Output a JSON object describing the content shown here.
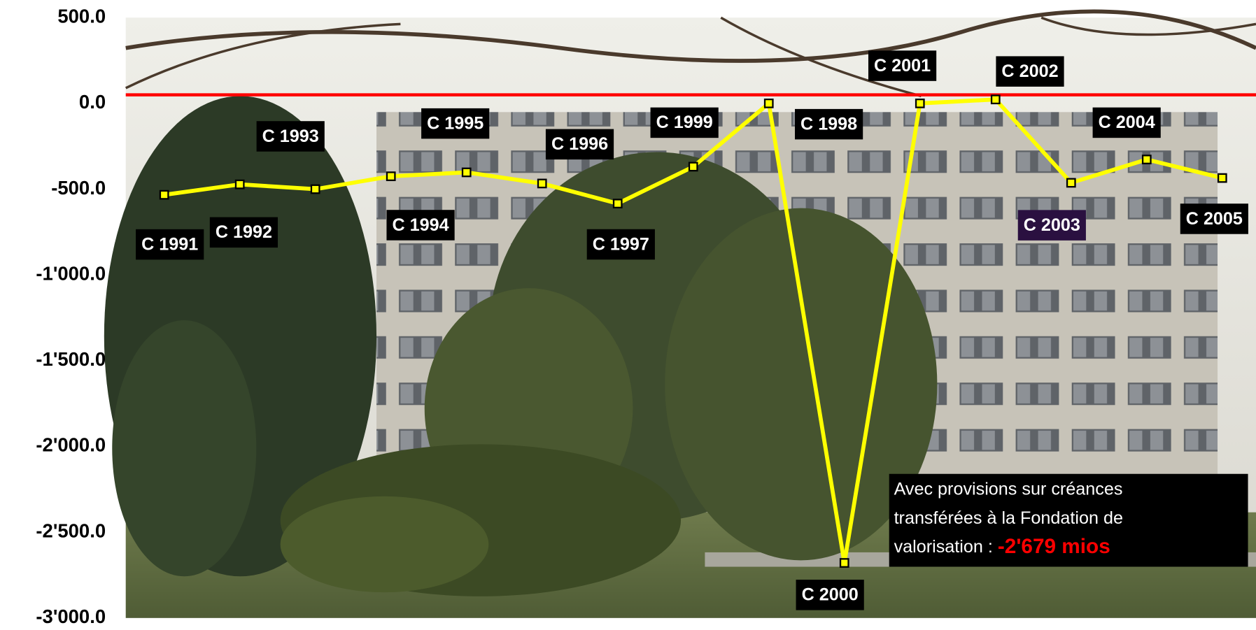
{
  "chart_data": {
    "type": "line",
    "categories": [
      "C 1991",
      "C 1992",
      "C 1993",
      "C 1994",
      "C 1995",
      "C 1996",
      "C 1997",
      "C 1999",
      "C 1998",
      "C 2000",
      "C 2001",
      "C 2002",
      "C 2003",
      "C 2004",
      "C 2005"
    ],
    "values": [
      -533,
      -472,
      -500,
      -425,
      -402,
      -467,
      -584,
      -369,
      0,
      -2679,
      0,
      23,
      -463,
      -327,
      -435
    ],
    "color": "#ffff00",
    "ylim": [
      -3000,
      500
    ],
    "yticks": [
      {
        "value": 500,
        "label": "500.0"
      },
      {
        "value": 0,
        "label": "0.0"
      },
      {
        "value": -500,
        "label": "-500.0"
      },
      {
        "value": -1000,
        "label": "-1'000.0"
      },
      {
        "value": -1500,
        "label": "-1'500.0"
      },
      {
        "value": -2000,
        "label": "-2'000.0"
      },
      {
        "value": -2500,
        "label": "-2'500.0"
      },
      {
        "value": -3000,
        "label": "-3'000.0"
      }
    ],
    "reference_line": {
      "value": 50,
      "color": "#ff0000"
    },
    "annotation": {
      "lines": [
        "Avec provisions sur créances",
        "transférées à la Fondation de",
        "valorisation : "
      ],
      "highlight": "-2'679 mios",
      "highlight_color": "#ff0000"
    }
  }
}
